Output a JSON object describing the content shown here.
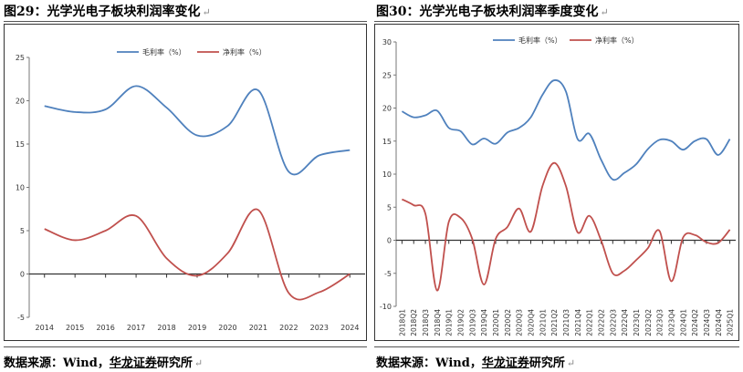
{
  "panels": [
    {
      "title": "图29：光学光电子板块利润率变化",
      "source_prefix": "数据来源：Wind，",
      "source_brand": "华龙证券",
      "source_suffix": "研究所",
      "return_mark": "↵"
    },
    {
      "title": "图30：光学光电子板块利润率季度变化",
      "source_prefix": "数据来源：Wind，",
      "source_brand": "华龙证券",
      "source_suffix": "研究所",
      "return_mark": "↵"
    }
  ],
  "colors": {
    "gross": "#4f81bd",
    "net": "#c0504d"
  },
  "chart_data": [
    {
      "type": "line",
      "title": "",
      "xlabel": "",
      "ylabel": "",
      "categories": [
        "2014",
        "2015",
        "2016",
        "2017",
        "2018",
        "2019",
        "2020",
        "2021",
        "2022",
        "2023",
        "2024"
      ],
      "ylim": [
        -5,
        25
      ],
      "yticks": [
        -5,
        0,
        5,
        10,
        15,
        20,
        25
      ],
      "grid": false,
      "legend": "top-center",
      "series": [
        {
          "name": "毛利率（%）",
          "color": "#4f81bd",
          "values": [
            19.4,
            18.7,
            19.0,
            21.7,
            19.2,
            16.0,
            17.1,
            21.2,
            11.8,
            13.7,
            14.3
          ]
        },
        {
          "name": "净利率（%）",
          "color": "#c0504d",
          "values": [
            5.2,
            3.9,
            5.0,
            6.7,
            1.8,
            -0.2,
            2.4,
            7.4,
            -2.2,
            -2.1,
            0.0
          ]
        }
      ]
    },
    {
      "type": "line",
      "title": "",
      "xlabel": "",
      "ylabel": "",
      "categories": [
        "2018Q1",
        "2018Q2",
        "2018Q3",
        "2018Q4",
        "2019Q1",
        "2019Q2",
        "2019Q3",
        "2019Q4",
        "2020Q1",
        "2020Q2",
        "2020Q3",
        "2020Q4",
        "2021Q1",
        "2021Q2",
        "2021Q3",
        "2021Q4",
        "2022Q1",
        "2022Q2",
        "2022Q3",
        "2022Q4",
        "2023Q1",
        "2023Q2",
        "2023Q3",
        "2023Q4",
        "2024Q1",
        "2024Q2",
        "2024Q3",
        "2024Q4",
        "2025Q1"
      ],
      "ylim": [
        -10,
        30
      ],
      "yticks": [
        -10,
        -5,
        0,
        5,
        10,
        15,
        20,
        25,
        30
      ],
      "grid": false,
      "legend": "top-center",
      "series": [
        {
          "name": "毛利率（%）",
          "color": "#4f81bd",
          "values": [
            19.5,
            18.6,
            18.9,
            19.6,
            17.0,
            16.5,
            14.5,
            15.4,
            14.6,
            16.3,
            17.0,
            18.6,
            22.0,
            24.2,
            22.5,
            15.3,
            16.1,
            12.2,
            9.2,
            10.2,
            11.5,
            13.8,
            15.2,
            15.0,
            13.7,
            15.0,
            15.3,
            12.9,
            15.3
          ]
        },
        {
          "name": "净利率（%）",
          "color": "#c0504d",
          "values": [
            6.2,
            5.3,
            4.0,
            -7.6,
            2.8,
            3.4,
            0.2,
            -6.7,
            0.2,
            2.0,
            4.8,
            1.3,
            8.2,
            11.7,
            8.2,
            1.2,
            3.7,
            0.0,
            -5.0,
            -4.6,
            -3.0,
            -1.2,
            1.4,
            -6.2,
            0.4,
            0.8,
            -0.3,
            -0.4,
            1.6
          ]
        }
      ]
    }
  ]
}
